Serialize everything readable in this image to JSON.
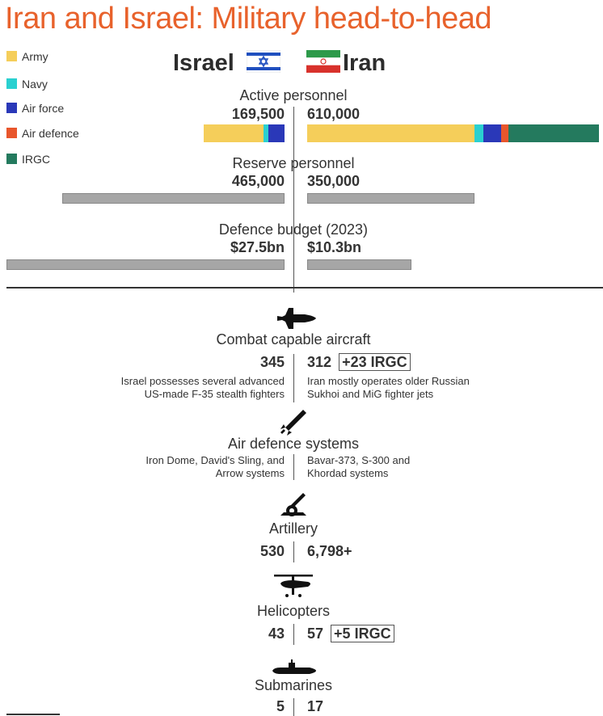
{
  "title": "Iran and Israel: Military head-to-head",
  "countries": {
    "left": "Israel",
    "right": "Iran"
  },
  "legend": [
    {
      "label": "Army",
      "color": "#f5ce5a"
    },
    {
      "label": "Navy",
      "color": "#2ad0d0"
    },
    {
      "label": "Air force",
      "color": "#2a38b8"
    },
    {
      "label": "Air defence",
      "color": "#e8562c"
    },
    {
      "label": "IRGC",
      "color": "#247a5e"
    }
  ],
  "chart_data": [
    {
      "type": "bar",
      "title": "Active personnel",
      "left": {
        "label": "169,500",
        "total": 169500
      },
      "right": {
        "label": "610,000",
        "total": 610000
      },
      "stacked": true,
      "segments_left": [
        {
          "name": "Army",
          "value": 126000,
          "color": "#f5ce5a"
        },
        {
          "name": "Navy",
          "value": 9500,
          "color": "#2ad0d0"
        },
        {
          "name": "Air force",
          "value": 34000,
          "color": "#2a38b8"
        }
      ],
      "segments_right": [
        {
          "name": "Army",
          "value": 350000,
          "color": "#f5ce5a"
        },
        {
          "name": "Navy",
          "value": 18000,
          "color": "#2ad0d0"
        },
        {
          "name": "Air force",
          "value": 37000,
          "color": "#2a38b8"
        },
        {
          "name": "Air defence",
          "value": 15000,
          "color": "#e8562c"
        },
        {
          "name": "IRGC",
          "value": 190000,
          "color": "#247a5e"
        }
      ]
    },
    {
      "type": "bar",
      "title": "Reserve personnel",
      "left": {
        "label": "465,000",
        "total": 465000
      },
      "right": {
        "label": "350,000",
        "total": 350000
      }
    },
    {
      "type": "bar",
      "title": "Defence budget (2023)",
      "left": {
        "label": "$27.5bn",
        "total": 27.5
      },
      "right": {
        "label": "$10.3bn",
        "total": 10.3
      }
    }
  ],
  "sections": {
    "aircraft": {
      "title": "Combat capable aircraft",
      "left": "345",
      "right": "312",
      "right_badge": "+23 IRGC",
      "note_left_1": "Israel possesses several advanced",
      "note_left_2": "US-made F-35 stealth fighters",
      "note_right_1": "Iran mostly operates older Russian",
      "note_right_2": "Sukhoi and MiG fighter jets",
      "icon": "fighter-jet-icon"
    },
    "airdefence": {
      "title": "Air defence systems",
      "note_left_1": "Iron Dome, David's Sling, and",
      "note_left_2": "Arrow systems",
      "note_right_1": "Bavar-373, S-300 and",
      "note_right_2": "Khordad systems",
      "icon": "missile-icon"
    },
    "artillery": {
      "title": "Artillery",
      "left": "530",
      "right": "6,798+",
      "icon": "artillery-icon"
    },
    "helicopters": {
      "title": "Helicopters",
      "left": "43",
      "right": "57",
      "right_badge": "+5 IRGC",
      "icon": "helicopter-icon"
    },
    "submarines": {
      "title": "Submarines",
      "left": "5",
      "right": "17",
      "icon": "submarine-icon"
    }
  }
}
